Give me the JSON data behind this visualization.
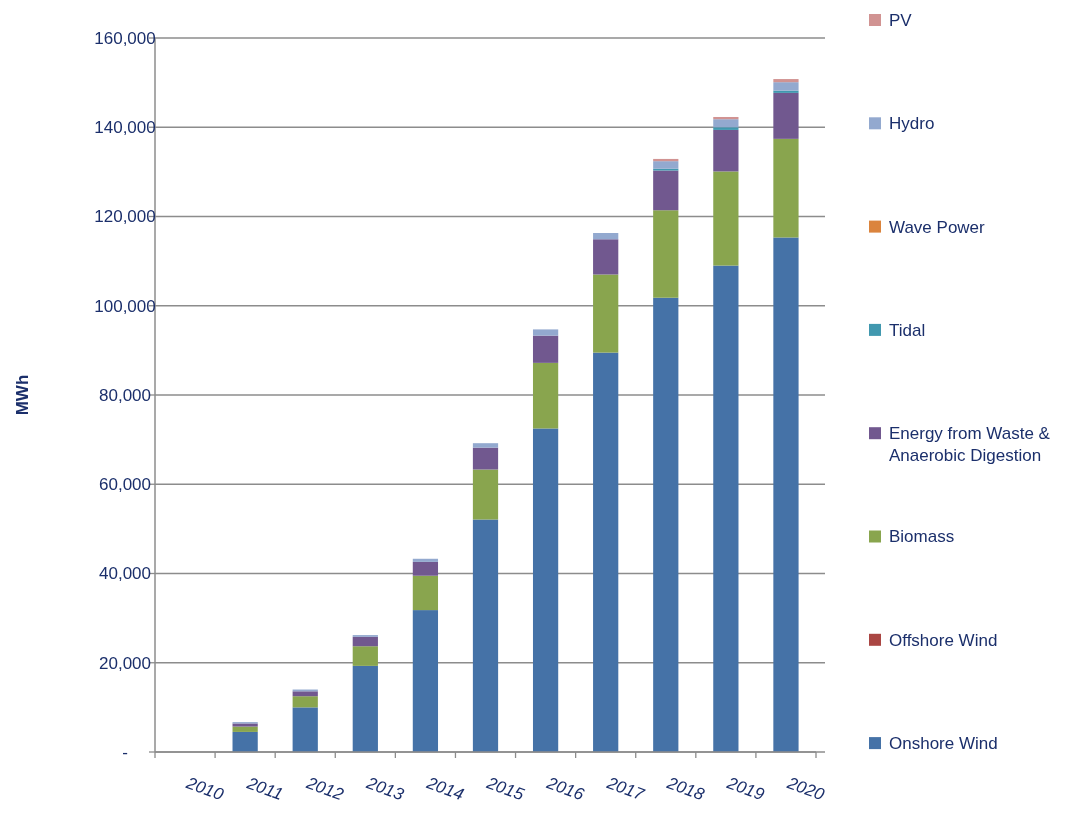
{
  "chart_data": {
    "type": "bar",
    "stacked": true,
    "ylabel": "MWh",
    "categories": [
      "2010",
      "2011",
      "2012",
      "2013",
      "2014",
      "2015",
      "2016",
      "2017",
      "2018",
      "2019",
      "2020"
    ],
    "series": [
      {
        "name": "Onshore Wind",
        "color": "#4572a7",
        "values": [
          0,
          4500,
          10000,
          19300,
          31800,
          52100,
          72500,
          89500,
          101800,
          109000,
          115300
        ]
      },
      {
        "name": "Offshore Wind",
        "color": "#aa4643",
        "values": [
          0,
          0,
          0,
          0,
          0,
          0,
          0,
          0,
          0,
          0,
          0
        ]
      },
      {
        "name": "Biomass",
        "color": "#89a54e",
        "values": [
          0,
          1200,
          2500,
          4400,
          7700,
          11200,
          14700,
          17500,
          19600,
          21100,
          22100
        ]
      },
      {
        "name": "Energy from Waste & Anaerobic Digestion",
        "color": "#71588f",
        "values": [
          0,
          700,
          1100,
          2100,
          3100,
          4900,
          6100,
          7900,
          8900,
          9300,
          10300
        ]
      },
      {
        "name": "Tidal",
        "color": "#4198af",
        "values": [
          0,
          0,
          0,
          0,
          0,
          0,
          0,
          0,
          400,
          600,
          500
        ]
      },
      {
        "name": "Wave Power",
        "color": "#db843d",
        "values": [
          0,
          0,
          0,
          0,
          0,
          0,
          0,
          0,
          0,
          0,
          0
        ]
      },
      {
        "name": "Hydro",
        "color": "#93a9cf",
        "values": [
          0,
          300,
          400,
          400,
          700,
          1000,
          1400,
          1400,
          1700,
          1800,
          1900
        ]
      },
      {
        "name": "PV",
        "color": "#d19392",
        "values": [
          0,
          0,
          0,
          0,
          0,
          0,
          0,
          0,
          500,
          500,
          700
        ]
      }
    ],
    "ylim": [
      0,
      160000
    ],
    "yticks": [
      {
        "value": 0,
        "label": "-"
      },
      {
        "value": 20000,
        "label": "20,000"
      },
      {
        "value": 40000,
        "label": "40,000"
      },
      {
        "value": 60000,
        "label": "60,000"
      },
      {
        "value": 80000,
        "label": "80,000"
      },
      {
        "value": 100000,
        "label": "100,000"
      },
      {
        "value": 120000,
        "label": "120,000"
      },
      {
        "value": 140000,
        "label": "140,000"
      },
      {
        "value": 160000,
        "label": "160,000"
      }
    ],
    "grid": "y",
    "legend": "right"
  }
}
